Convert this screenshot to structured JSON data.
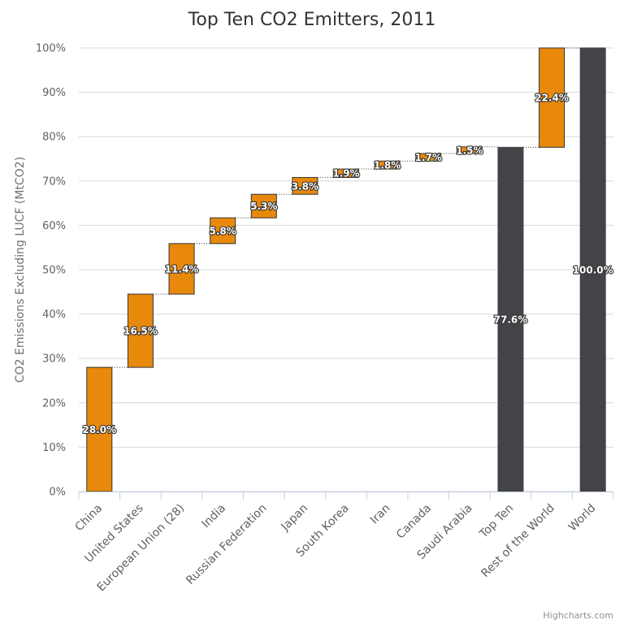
{
  "chart_data": {
    "type": "waterfall",
    "title": "Top Ten CO2 Emitters, 2011",
    "ylabel": "CO2 Emissions Excluding LUCF (MtCO2)",
    "ylim": [
      0,
      100
    ],
    "y_ticks": [
      "0%",
      "10%",
      "20%",
      "30%",
      "40%",
      "50%",
      "60%",
      "70%",
      "80%",
      "90%",
      "100%"
    ],
    "grid": true,
    "legend": "none",
    "categories": [
      "China",
      "United States",
      "European Union (28)",
      "India",
      "Russian Federation",
      "Japan",
      "South Korea",
      "Iran",
      "Canada",
      "Saudi Arabia",
      "Top Ten",
      "Rest of the World",
      "World"
    ],
    "values": [
      28.0,
      16.5,
      11.4,
      5.8,
      5.3,
      3.8,
      1.9,
      1.8,
      1.7,
      1.5,
      77.6,
      22.4,
      100.0
    ],
    "is_total": [
      false,
      false,
      false,
      false,
      false,
      false,
      false,
      false,
      false,
      false,
      true,
      false,
      true
    ],
    "labels": [
      "28.0%",
      "16.5%",
      "11.4%",
      "5.8%",
      "5.3%",
      "3.8%",
      "1.9%",
      "1.8%",
      "1.7%",
      "1.5%",
      "77.6%",
      "22.4%",
      "100.0%"
    ],
    "colors": {
      "increment": "#e8890c",
      "total": "#434348",
      "border": "#333333"
    },
    "credit": "Highcharts.com"
  }
}
